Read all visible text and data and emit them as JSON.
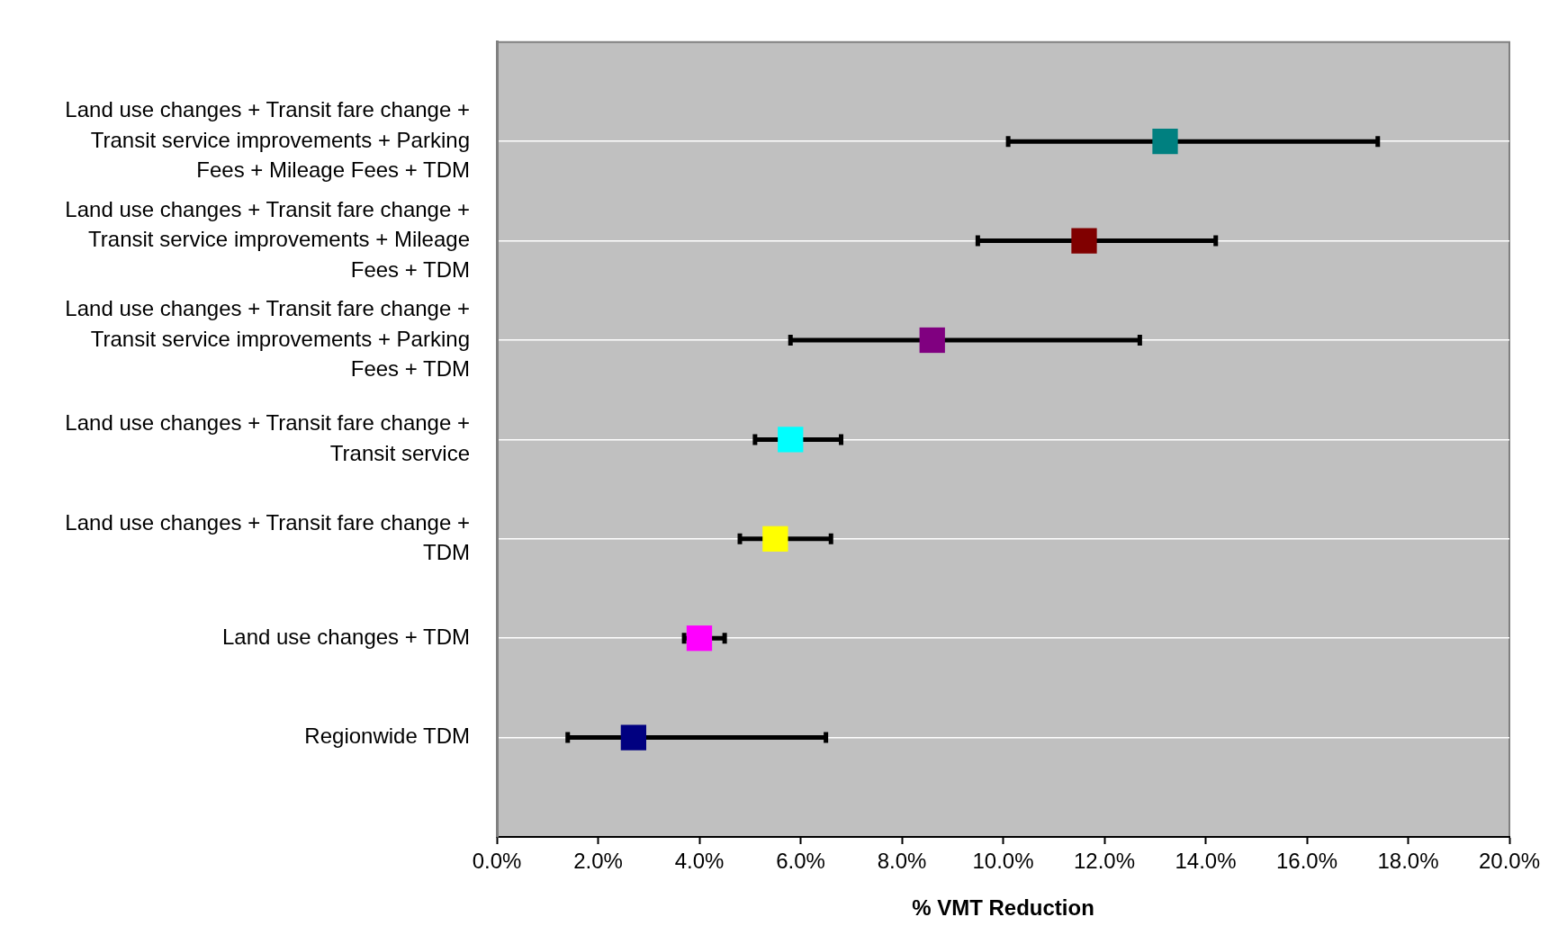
{
  "chart_data": {
    "type": "scatter",
    "orientation": "horizontal",
    "categories": [
      "Land use changes + Transit fare change + Transit service improvements + Parking Fees + Mileage Fees + TDM",
      "Land use changes + Transit fare change + Transit service improvements + Mileage Fees + TDM",
      "Land use changes + Transit fare change + Transit service improvements + Parking Fees + TDM",
      "Land use changes + Transit fare change + Transit service",
      "Land use changes + Transit fare change + TDM",
      "Land use changes + TDM",
      "Regionwide TDM"
    ],
    "values": [
      13.2,
      11.6,
      8.6,
      5.8,
      5.5,
      4.0,
      2.7
    ],
    "errors": [
      [
        10.1,
        17.4
      ],
      [
        9.5,
        14.2
      ],
      [
        5.8,
        12.7
      ],
      [
        5.1,
        6.8
      ],
      [
        4.8,
        6.6
      ],
      [
        3.7,
        4.5
      ],
      [
        1.4,
        6.5
      ]
    ],
    "colors": [
      "#008080",
      "#800000",
      "#800080",
      "#00ffff",
      "#ffff00",
      "#ff00ff",
      "#000080"
    ],
    "marker": "square",
    "xlabel": "% VMT Reduction",
    "xlim": [
      0,
      20
    ],
    "xticks": [
      {
        "value": 0,
        "label": "0.0%"
      },
      {
        "value": 2,
        "label": "2.0%"
      },
      {
        "value": 4,
        "label": "4.0%"
      },
      {
        "value": 6,
        "label": "6.0%"
      },
      {
        "value": 8,
        "label": "8.0%"
      },
      {
        "value": 10,
        "label": "10.0%"
      },
      {
        "value": 12,
        "label": "12.0%"
      },
      {
        "value": 14,
        "label": "14.0%"
      },
      {
        "value": 16,
        "label": "16.0%"
      },
      {
        "value": 18,
        "label": "18.0%"
      },
      {
        "value": 20,
        "label": "20.0%"
      }
    ],
    "grid": "y",
    "legend": false
  }
}
